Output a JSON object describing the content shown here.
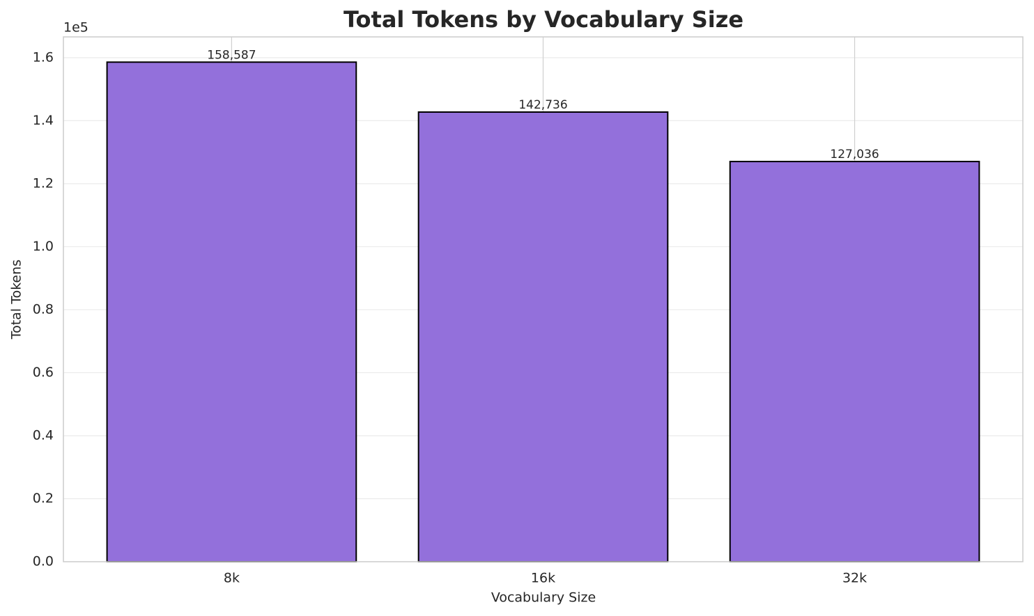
{
  "chart_data": {
    "type": "bar",
    "title": "Total Tokens by Vocabulary Size",
    "x_label": "Vocabulary Size",
    "y_label": "Total Tokens",
    "y_offset_label": "1e5",
    "categories": [
      "8k",
      "16k",
      "32k"
    ],
    "values": [
      158587,
      142736,
      127036
    ],
    "value_labels": [
      "158,587",
      "142,736",
      "127,036"
    ],
    "color": "#9370db",
    "edge_color": "#000000",
    "ylim": [
      0,
      166600
    ],
    "yticks": [
      {
        "value": 0,
        "label": "0.0"
      },
      {
        "value": 20000,
        "label": "0.2"
      },
      {
        "value": 40000,
        "label": "0.4"
      },
      {
        "value": 60000,
        "label": "0.6"
      },
      {
        "value": 80000,
        "label": "0.8"
      },
      {
        "value": 100000,
        "label": "1.0"
      },
      {
        "value": 120000,
        "label": "1.2"
      },
      {
        "value": 140000,
        "label": "1.4"
      },
      {
        "value": 160000,
        "label": "1.6"
      }
    ],
    "grid": true
  }
}
